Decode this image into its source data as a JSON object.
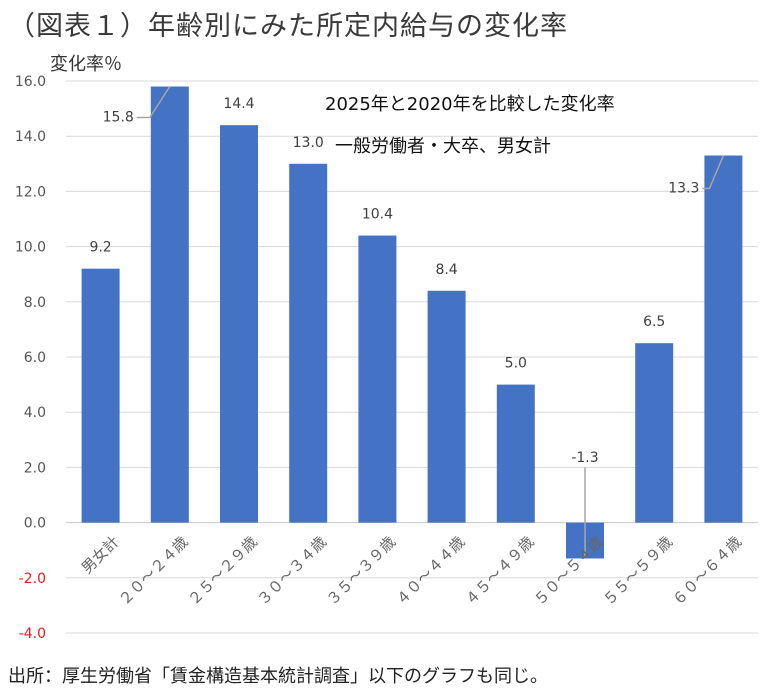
{
  "figure": {
    "title": "（図表１）年齢別にみた所定内給与の変化率",
    "source": "出所：厚生労働省「賃金構造基本統計調査」以下のグラフも同じ。"
  },
  "chart_data": {
    "type": "bar",
    "ylabel": "変化率％",
    "xlabel": "",
    "annotation_line1": "2025年と2020年を比較した変化率",
    "annotation_line2": "一般労働者・大卒、男女計",
    "categories": [
      "男女計",
      "２０～２４歳",
      "２５～２９歳",
      "３０～３４歳",
      "３５～３９歳",
      "４０～４４歳",
      "４５～４９歳",
      "５０～５４歳",
      "５５～５９歳",
      "６０～６４歳"
    ],
    "values": [
      9.2,
      15.8,
      14.4,
      13.0,
      10.4,
      8.4,
      5.0,
      -1.3,
      6.5,
      13.3
    ],
    "value_labels": [
      "9.2",
      "15.8",
      "14.4",
      "13.0",
      "10.4",
      "8.4",
      "5.0",
      "-1.3",
      "6.5",
      "13.3"
    ],
    "ylim": [
      -4.0,
      16.0
    ],
    "yticks": [
      "16.0",
      "14.0",
      "12.0",
      "10.0",
      "8.0",
      "6.0",
      "4.0",
      "2.0",
      "0.0",
      "-2.0",
      "-4.0"
    ],
    "grid": true,
    "bar_color": "#4472c4",
    "negative_label_color": "#e0201c"
  }
}
